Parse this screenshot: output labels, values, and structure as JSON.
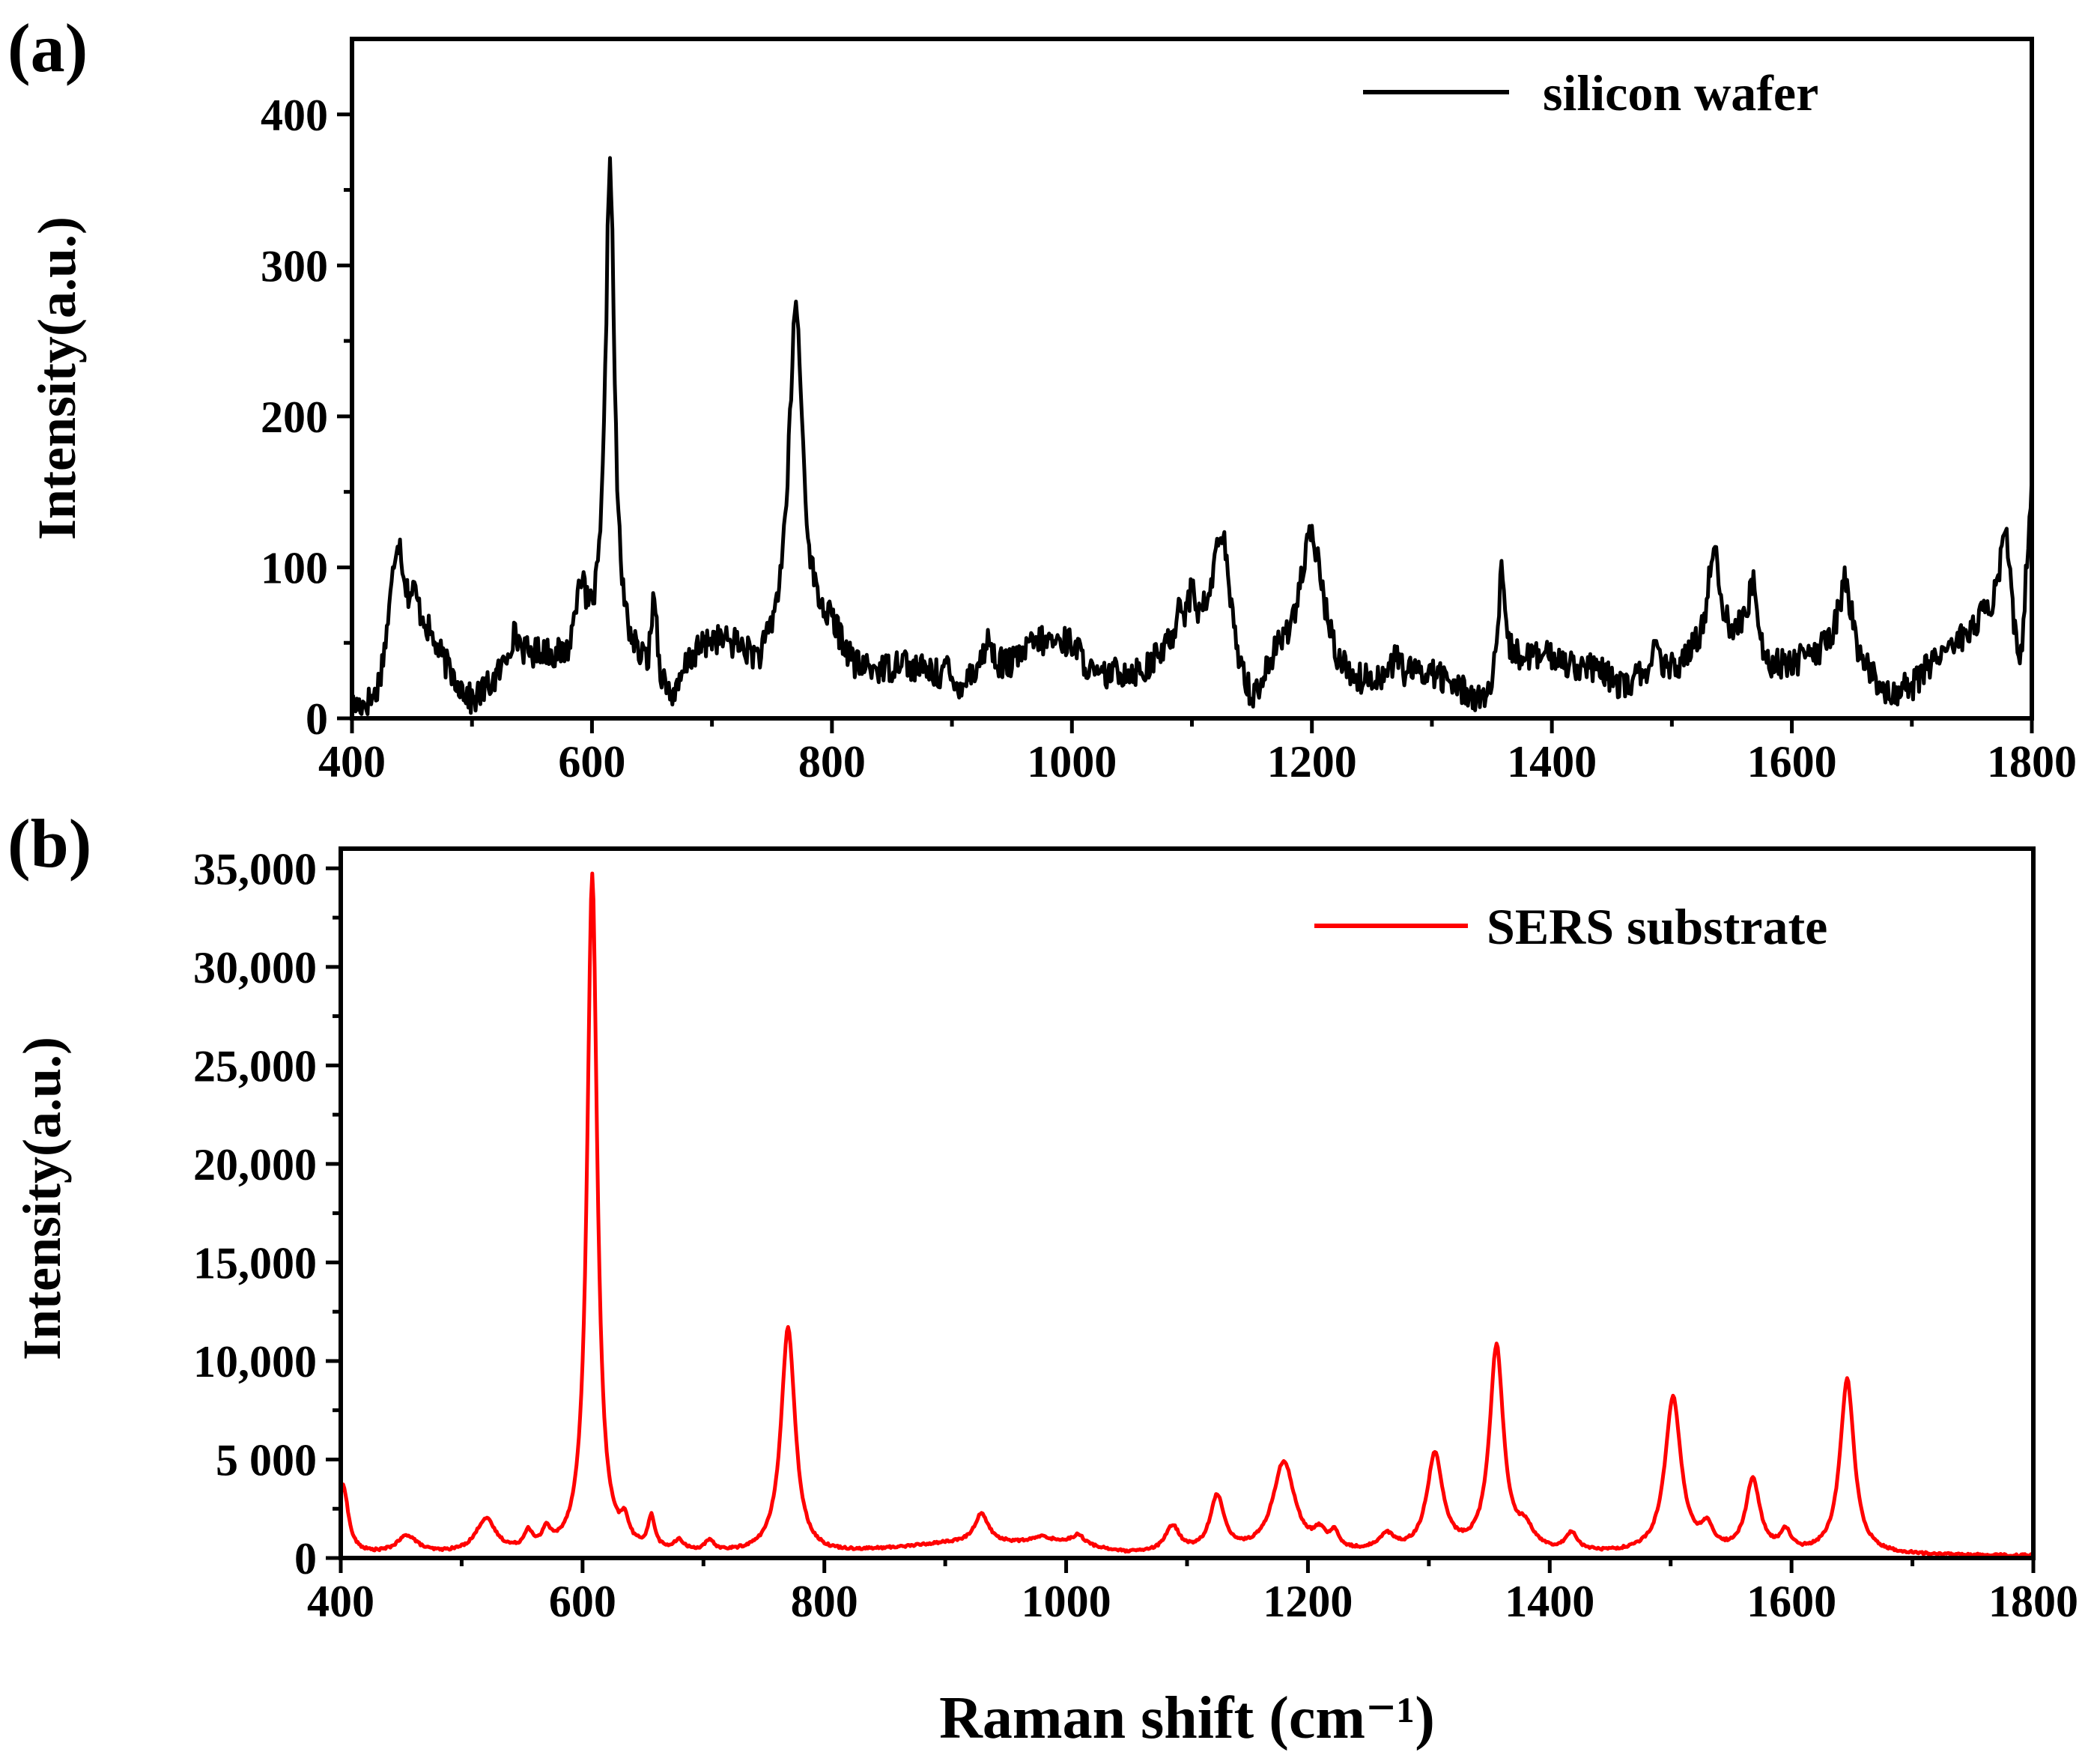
{
  "chart_data": [
    {
      "type": "line",
      "panel_label": "(a)",
      "xlabel": "",
      "ylabel": "Intensity(a.u.)",
      "xlim": [
        400,
        1800
      ],
      "ylim": [
        0,
        450
      ],
      "xticks": [
        400,
        600,
        800,
        1000,
        1200,
        1400,
        1600,
        1800
      ],
      "xtick_labels": [
        "400",
        "600",
        "800",
        "1000",
        "1200",
        "1400",
        "1600",
        "1800"
      ],
      "yticks": [
        0,
        100,
        200,
        300,
        400
      ],
      "ytick_labels": [
        "0",
        "100",
        "200",
        "300",
        "400"
      ],
      "legend_position": "top-right",
      "series": [
        {
          "name": "silicon wafer",
          "color": "#000000",
          "noise": 10,
          "baseline": [
            [
              400,
              5
            ],
            [
              420,
              5
            ],
            [
              430,
              30
            ],
            [
              460,
              55
            ],
            [
              480,
              30
            ],
            [
              500,
              8
            ],
            [
              510,
              15
            ],
            [
              530,
              25
            ],
            [
              560,
              40
            ],
            [
              580,
              30
            ],
            [
              600,
              40
            ],
            [
              630,
              35
            ],
            [
              660,
              15
            ],
            [
              670,
              10
            ],
            [
              680,
              35
            ],
            [
              700,
              50
            ],
            [
              720,
              45
            ],
            [
              740,
              30
            ],
            [
              760,
              50
            ],
            [
              800,
              55
            ],
            [
              820,
              30
            ],
            [
              850,
              30
            ],
            [
              880,
              30
            ],
            [
              900,
              15
            ],
            [
              920,
              30
            ],
            [
              950,
              35
            ],
            [
              970,
              50
            ],
            [
              1000,
              50
            ],
            [
              1020,
              25
            ],
            [
              1040,
              30
            ],
            [
              1060,
              30
            ],
            [
              1080,
              45
            ],
            [
              1100,
              55
            ],
            [
              1120,
              60
            ],
            [
              1140,
              25
            ],
            [
              1150,
              5
            ],
            [
              1170,
              35
            ],
            [
              1200,
              50
            ],
            [
              1220,
              25
            ],
            [
              1240,
              20
            ],
            [
              1260,
              25
            ],
            [
              1300,
              30
            ],
            [
              1320,
              20
            ],
            [
              1345,
              10
            ],
            [
              1360,
              40
            ],
            [
              1400,
              40
            ],
            [
              1440,
              30
            ],
            [
              1460,
              20
            ],
            [
              1480,
              30
            ],
            [
              1500,
              30
            ],
            [
              1520,
              40
            ],
            [
              1560,
              50
            ],
            [
              1580,
              30
            ],
            [
              1600,
              35
            ],
            [
              1620,
              40
            ],
            [
              1640,
              50
            ],
            [
              1660,
              30
            ],
            [
              1680,
              15
            ],
            [
              1700,
              20
            ],
            [
              1720,
              40
            ],
            [
              1740,
              50
            ],
            [
              1760,
              60
            ],
            [
              1780,
              40
            ],
            [
              1790,
              10
            ],
            [
              1800,
              150
            ]
          ],
          "peaks": [
            [
              438,
              80,
              7
            ],
            [
              452,
              20,
              4
            ],
            [
              535,
              25,
              8
            ],
            [
              590,
              50,
              5
            ],
            [
              615,
              330,
              4.5
            ],
            [
              652,
              60,
              2.5
            ],
            [
              770,
              220,
              7
            ],
            [
              858,
              10,
              4
            ],
            [
              895,
              15,
              4
            ],
            [
              930,
              20,
              4
            ],
            [
              1090,
              25,
              3
            ],
            [
              1100,
              25,
              3
            ],
            [
              1125,
              70,
              7
            ],
            [
              1200,
              70,
              12
            ],
            [
              1270,
              15,
              3
            ],
            [
              1358,
              60,
              2.5
            ],
            [
              1486,
              15,
              3
            ],
            [
              1535,
              70,
              6
            ],
            [
              1568,
              45,
              5
            ],
            [
              1645,
              45,
              6
            ],
            [
              1778,
              80,
              7
            ]
          ]
        }
      ]
    },
    {
      "type": "line",
      "panel_label": "(b)",
      "xlabel": "Raman shift (cm⁻¹)",
      "ylabel": "Intensity(a.u.)",
      "xlim": [
        400,
        1800
      ],
      "ylim": [
        0,
        36000
      ],
      "xticks": [
        400,
        600,
        800,
        1000,
        1200,
        1400,
        1600,
        1800
      ],
      "xtick_labels": [
        "400",
        "600",
        "800",
        "1000",
        "1200",
        "1400",
        "1600",
        "1800"
      ],
      "yticks": [
        0,
        5000,
        10000,
        15000,
        20000,
        25000,
        30000,
        35000
      ],
      "ytick_labels": [
        "0",
        "5 000",
        "10,000",
        "15,000",
        "20,000",
        "25,000",
        "30,000",
        "35,000"
      ],
      "legend_position": "top-right",
      "series": [
        {
          "name": "SERS substrate",
          "color": "#ff0000",
          "noise": 60,
          "baseline": [
            [
              400,
              150
            ],
            [
              800,
              150
            ],
            [
              850,
              400
            ],
            [
              900,
              700
            ],
            [
              950,
              700
            ],
            [
              1000,
              700
            ],
            [
              1050,
              200
            ],
            [
              1800,
              100
            ]
          ],
          "peaks": [
            [
              402,
              3500,
              5
            ],
            [
              455,
              900,
              10
            ],
            [
              520,
              1700,
              10
            ],
            [
              555,
              900,
              4
            ],
            [
              570,
              900,
              4
            ],
            [
              608,
              34500,
              5
            ],
            [
              635,
              1100,
              4
            ],
            [
              657,
              1600,
              3.5
            ],
            [
              680,
              500,
              5
            ],
            [
              705,
              500,
              5
            ],
            [
              770,
              11500,
              7
            ],
            [
              930,
              1500,
              7
            ],
            [
              980,
              300,
              10
            ],
            [
              1010,
              500,
              6
            ],
            [
              1088,
              1300,
              7
            ],
            [
              1125,
              2800,
              7
            ],
            [
              1180,
              4600,
              11
            ],
            [
              1210,
              800,
              6
            ],
            [
              1222,
              800,
              4
            ],
            [
              1265,
              800,
              8
            ],
            [
              1305,
              4900,
              8
            ],
            [
              1356,
              10400,
              7
            ],
            [
              1380,
              1000,
              8
            ],
            [
              1418,
              900,
              6
            ],
            [
              1502,
              7900,
              8
            ],
            [
              1530,
              1100,
              6
            ],
            [
              1568,
              3700,
              7
            ],
            [
              1595,
              1000,
              5
            ],
            [
              1646,
              8900,
              7
            ]
          ]
        }
      ]
    }
  ]
}
